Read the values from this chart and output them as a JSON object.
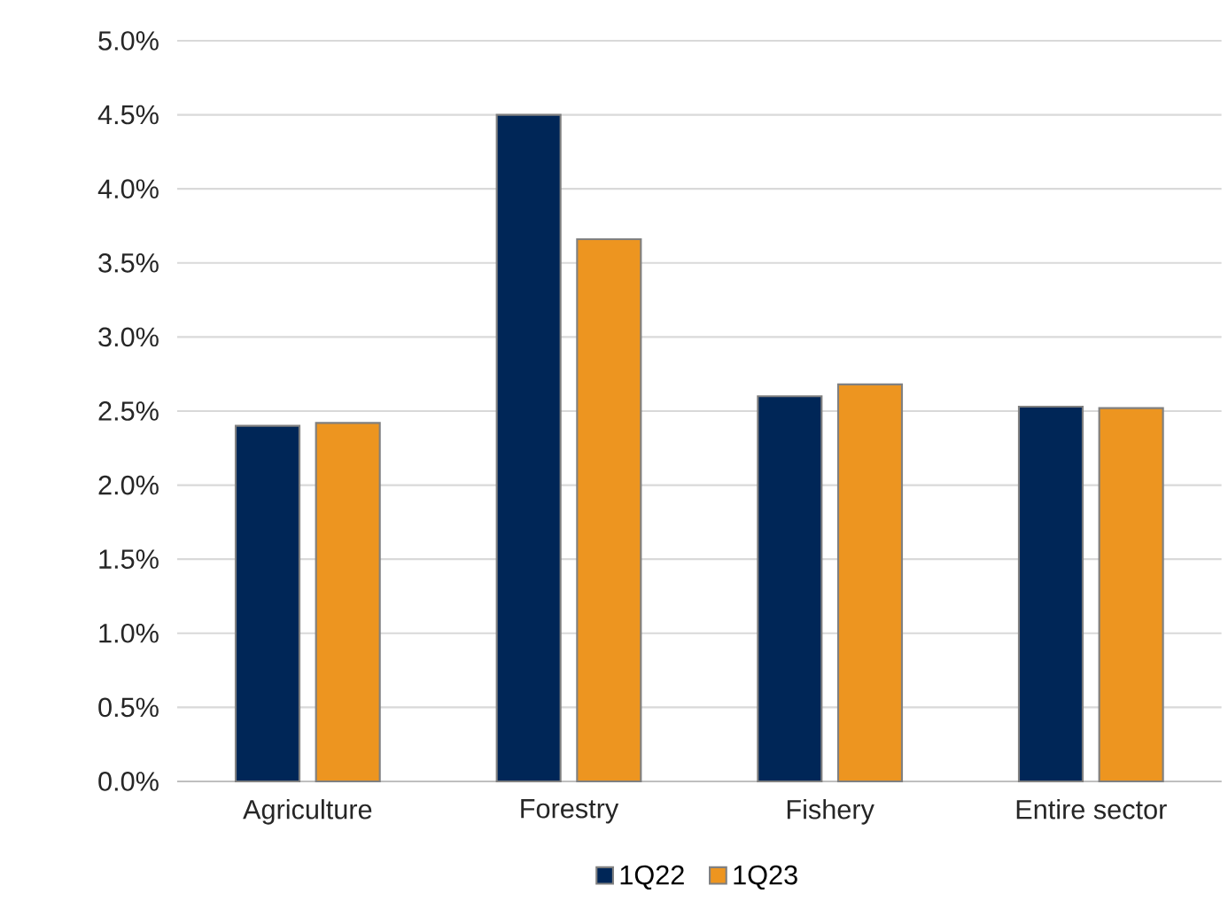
{
  "chart_data": {
    "type": "bar",
    "categories": [
      "Agriculture",
      "Forestry",
      "Fishery",
      "Entire sector"
    ],
    "series": [
      {
        "name": "1Q22",
        "color": "#002657",
        "values": [
          2.4,
          4.5,
          2.6,
          2.53
        ]
      },
      {
        "name": "1Q23",
        "color": "#ed9520",
        "values": [
          2.42,
          3.66,
          2.68,
          2.52
        ]
      }
    ],
    "ylim": [
      0,
      5
    ],
    "yticks": [
      {
        "value": 0,
        "label": "0.0%"
      },
      {
        "value": 0.5,
        "label": "0.5%"
      },
      {
        "value": 1,
        "label": "1.0%"
      },
      {
        "value": 1.5,
        "label": "1.5%"
      },
      {
        "value": 2,
        "label": "2.0%"
      },
      {
        "value": 2.5,
        "label": "2.5%"
      },
      {
        "value": 3,
        "label": "3.0%"
      },
      {
        "value": 3.5,
        "label": "3.5%"
      },
      {
        "value": 4,
        "label": "4.0%"
      },
      {
        "value": 4.5,
        "label": "4.5%"
      },
      {
        "value": 5,
        "label": "5.0%"
      }
    ],
    "grid": "y",
    "legend": "bottom"
  }
}
